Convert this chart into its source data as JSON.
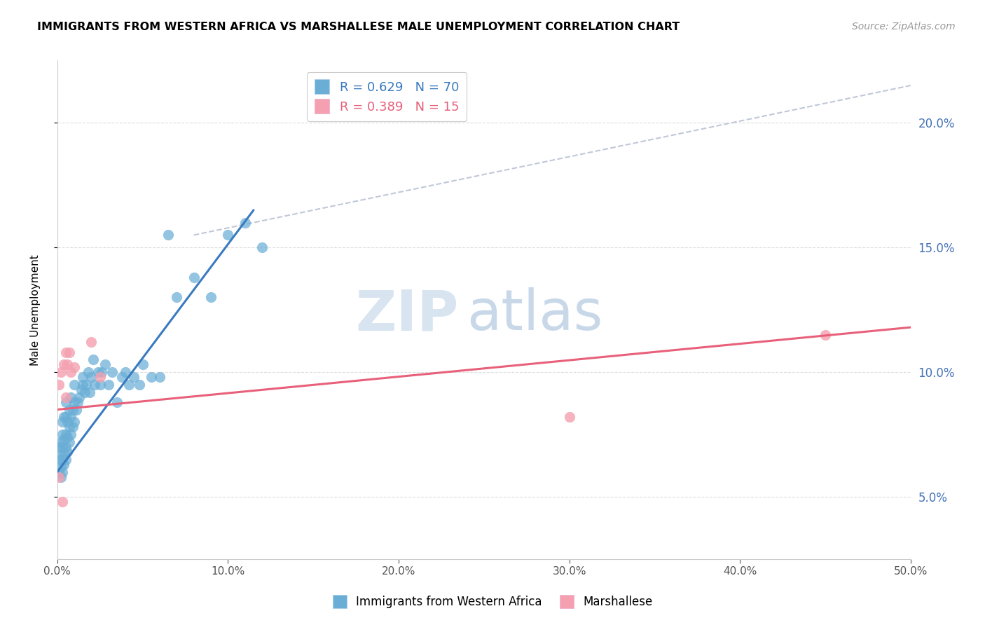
{
  "title": "IMMIGRANTS FROM WESTERN AFRICA VS MARSHALLESE MALE UNEMPLOYMENT CORRELATION CHART",
  "source": "Source: ZipAtlas.com",
  "ylabel": "Male Unemployment",
  "ylabel_right_ticks": [
    0.05,
    0.1,
    0.15,
    0.2
  ],
  "ylabel_right_labels": [
    "5.0%",
    "10.0%",
    "15.0%",
    "20.0%"
  ],
  "xlim": [
    0.0,
    0.5
  ],
  "ylim": [
    0.025,
    0.225
  ],
  "legend_r1": "R = 0.629",
  "legend_n1": "N = 70",
  "legend_r2": "R = 0.389",
  "legend_n2": "N = 15",
  "color_blue": "#6aaed6",
  "color_pink": "#f4a0b0",
  "line_blue": "#3a7abf",
  "line_pink": "#e8607a",
  "line_dashed": "#c0c8d8",
  "watermark_zip": "ZIP",
  "watermark_atlas": "atlas",
  "blue_x": [
    0.001,
    0.001,
    0.001,
    0.002,
    0.002,
    0.002,
    0.002,
    0.003,
    0.003,
    0.003,
    0.003,
    0.003,
    0.004,
    0.004,
    0.004,
    0.004,
    0.005,
    0.005,
    0.005,
    0.005,
    0.005,
    0.006,
    0.006,
    0.006,
    0.007,
    0.007,
    0.007,
    0.008,
    0.008,
    0.008,
    0.009,
    0.009,
    0.01,
    0.01,
    0.01,
    0.011,
    0.012,
    0.013,
    0.014,
    0.015,
    0.015,
    0.016,
    0.017,
    0.018,
    0.019,
    0.02,
    0.021,
    0.022,
    0.024,
    0.025,
    0.026,
    0.028,
    0.03,
    0.032,
    0.035,
    0.038,
    0.04,
    0.042,
    0.045,
    0.048,
    0.05,
    0.055,
    0.06,
    0.065,
    0.07,
    0.08,
    0.09,
    0.1,
    0.11,
    0.12
  ],
  "blue_y": [
    0.06,
    0.065,
    0.07,
    0.058,
    0.062,
    0.067,
    0.072,
    0.06,
    0.065,
    0.07,
    0.075,
    0.08,
    0.063,
    0.068,
    0.073,
    0.082,
    0.065,
    0.07,
    0.075,
    0.082,
    0.088,
    0.068,
    0.074,
    0.08,
    0.072,
    0.078,
    0.085,
    0.075,
    0.082,
    0.09,
    0.078,
    0.085,
    0.08,
    0.088,
    0.095,
    0.085,
    0.088,
    0.09,
    0.093,
    0.095,
    0.098,
    0.092,
    0.095,
    0.1,
    0.092,
    0.098,
    0.105,
    0.095,
    0.1,
    0.095,
    0.1,
    0.103,
    0.095,
    0.1,
    0.088,
    0.098,
    0.1,
    0.095,
    0.098,
    0.095,
    0.103,
    0.098,
    0.098,
    0.155,
    0.13,
    0.138,
    0.13,
    0.155,
    0.16,
    0.15
  ],
  "pink_x": [
    0.001,
    0.001,
    0.002,
    0.003,
    0.004,
    0.005,
    0.005,
    0.006,
    0.007,
    0.008,
    0.01,
    0.02,
    0.025,
    0.3,
    0.45
  ],
  "pink_y": [
    0.058,
    0.095,
    0.1,
    0.048,
    0.103,
    0.09,
    0.108,
    0.103,
    0.108,
    0.1,
    0.102,
    0.112,
    0.098,
    0.082,
    0.115
  ],
  "blue_line_x": [
    0.0,
    0.115
  ],
  "blue_line_y": [
    0.06,
    0.165
  ],
  "pink_line_x": [
    0.0,
    0.5
  ],
  "pink_line_y": [
    0.085,
    0.118
  ],
  "dash_line_x": [
    0.08,
    0.5
  ],
  "dash_line_y": [
    0.155,
    0.215
  ]
}
